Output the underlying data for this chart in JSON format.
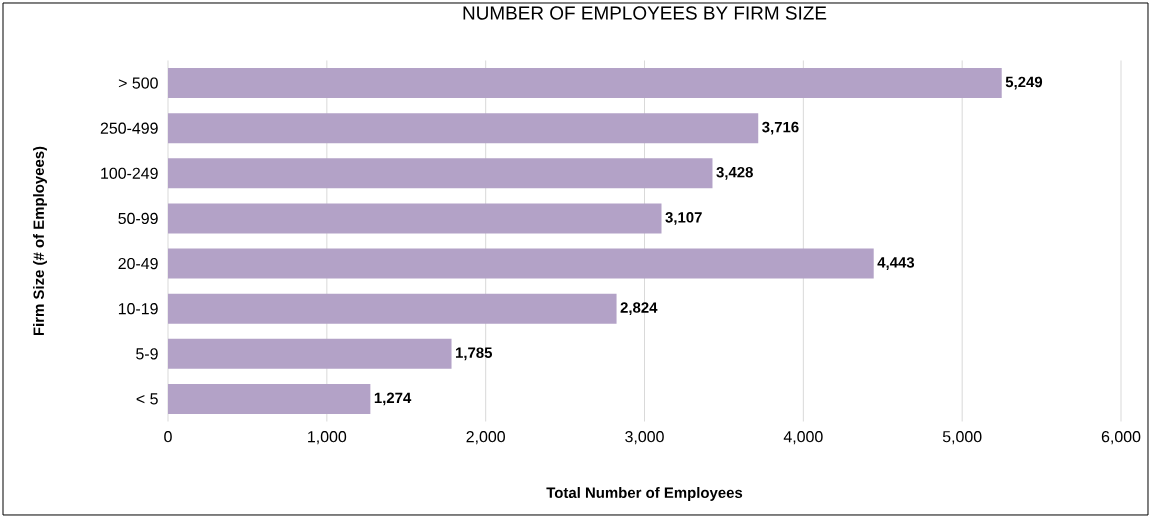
{
  "chart_data": {
    "type": "bar",
    "orientation": "horizontal",
    "title": "NUMBER OF EMPLOYEES BY FIRM SIZE",
    "xlabel": "Total Number of Employees",
    "ylabel": "Firm Size (# of Employees)",
    "categories": [
      "> 500",
      "250-499",
      "100-249",
      "50-99",
      "20-49",
      "10-19",
      "5-9",
      "< 5"
    ],
    "values": [
      5249,
      3716,
      3428,
      3107,
      4443,
      2824,
      1785,
      1274
    ],
    "value_labels": [
      "5,249",
      "3,716",
      "3,428",
      "3,107",
      "4,443",
      "2,824",
      "1,785",
      "1,274"
    ],
    "color": "#b3a2c7",
    "xlim": [
      0,
      6000
    ],
    "xticks": [
      0,
      {
        "value": 1000,
        "label": "1,000"
      },
      {
        "value": 2000,
        "label": "2,000"
      },
      {
        "value": 3000,
        "label": "3,000"
      },
      {
        "value": 4000,
        "label": "4,000"
      },
      {
        "value": 5000,
        "label": "5,000"
      },
      {
        "value": 6000,
        "label": "6,000"
      }
    ],
    "grid": "x"
  }
}
